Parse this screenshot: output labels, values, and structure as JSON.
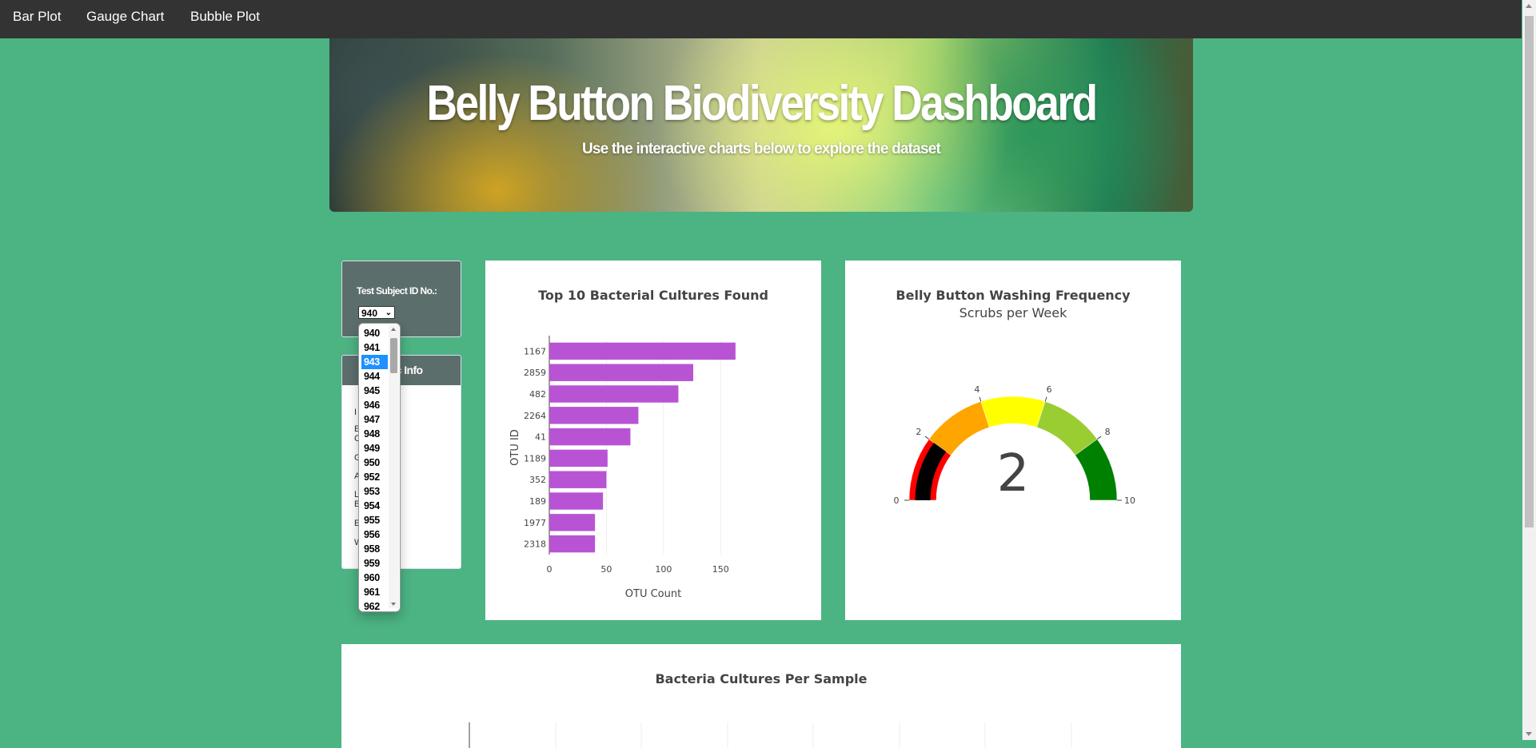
{
  "navbar": {
    "links": [
      "Bar Plot",
      "Gauge Chart",
      "Bubble Plot"
    ],
    "bg_color": "#333333"
  },
  "header": {
    "title": "Belly Button Biodiversity Dashboard",
    "subtitle": "Use the interactive charts below to explore the dataset"
  },
  "selector": {
    "label": "Test Subject ID No.:",
    "selected_value": "940",
    "options": [
      "940",
      "941",
      "943",
      "944",
      "945",
      "946",
      "947",
      "948",
      "949",
      "950",
      "952",
      "953",
      "954",
      "955",
      "956",
      "958",
      "959",
      "960",
      "961",
      "962"
    ],
    "highlighted_option": "943"
  },
  "demographics": {
    "title": "Demographic Info",
    "title_visible": "phic Info",
    "visible_fragments": [
      "I",
      "E    Y:",
      "C",
      "G    F",
      "A",
      "L    N:",
      "B    C",
      "E",
      "W    :"
    ]
  },
  "bar_chart": {
    "title": "Top 10 Bacterial Cultures Found"
  },
  "gauge_chart": {
    "title": "Belly Button Washing Frequency",
    "subtitle": "Scrubs per Week",
    "value_text": "2"
  },
  "bubble_chart": {
    "title": "Bacteria Cultures Per Sample"
  },
  "colors": {
    "page_background": "#4cb383",
    "panel_header": "#5c6e6c",
    "bar_color": "#b854d4",
    "gauge_colors": [
      "#ff0000",
      "#ffa500",
      "#ffff00",
      "#9acd32",
      "#008000"
    ],
    "gauge_value_bar": "#000000"
  },
  "chart_data": [
    {
      "type": "bar",
      "orientation": "horizontal",
      "title": "Top 10 Bacterial Cultures Found",
      "xlabel": "OTU Count",
      "ylabel": "OTU ID",
      "categories": [
        "1167",
        "2859",
        "482",
        "2264",
        "41",
        "1189",
        "352",
        "189",
        "1977",
        "2318"
      ],
      "values": [
        163,
        126,
        113,
        78,
        71,
        51,
        50,
        47,
        40,
        40
      ],
      "xlim": [
        0,
        175
      ],
      "xticks": [
        "0",
        "50",
        "100",
        "150"
      ],
      "grid": true
    },
    {
      "type": "gauge",
      "title": "Belly Button Washing Frequency",
      "subtitle": "Scrubs per Week",
      "value": 2,
      "range": [
        0,
        10
      ],
      "ticks": [
        "0",
        "2",
        "4",
        "6",
        "8",
        "10"
      ],
      "steps": [
        {
          "range": [
            0,
            2
          ],
          "color": "#ff0000"
        },
        {
          "range": [
            2,
            4
          ],
          "color": "#ffa500"
        },
        {
          "range": [
            4,
            6
          ],
          "color": "#ffff00"
        },
        {
          "range": [
            6,
            8
          ],
          "color": "#9acd32"
        },
        {
          "range": [
            8,
            10
          ],
          "color": "#008000"
        }
      ]
    }
  ]
}
